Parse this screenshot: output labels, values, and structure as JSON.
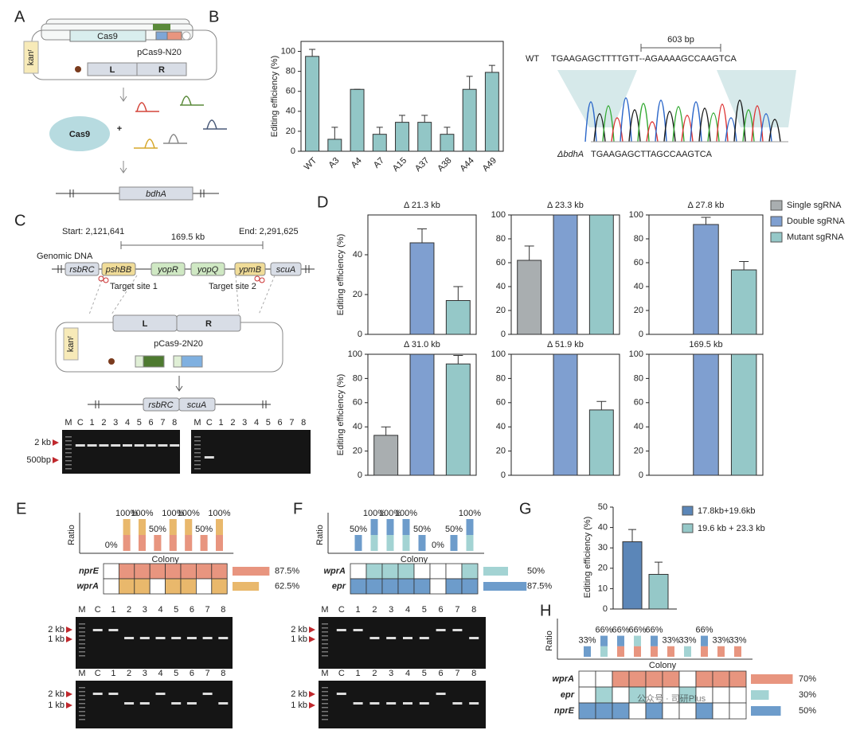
{
  "panel_labels": [
    "A",
    "B",
    "C",
    "D",
    "E",
    "F",
    "G",
    "H"
  ],
  "panel_a": {
    "cas9_gene": "Cas9",
    "kan": "kanʳ",
    "plasmid": "pCas9-N20",
    "left_arm": "L",
    "right_arm": "R",
    "cas9_protein": "Cas9",
    "plus": "+",
    "gene": "bdhA"
  },
  "panel_b_seq": {
    "wt_label": "WT",
    "wt_seq": "TGAAGAGCTTTTGTT--AGAAAAGCCAAGTCA",
    "deletion": "603 bp",
    "mut_label": "ΔbdhA",
    "mut_seq": "TGAAGAGCTTAGCCAAGTCA"
  },
  "panel_c": {
    "start": "Start: 2,121,641",
    "end": "End: 2,291,625",
    "span": "169.5 kb",
    "genomic": "Genomic DNA",
    "genes": [
      "rsbRC",
      "pshBB",
      "yopR",
      "yopQ",
      "ypmB",
      "scuA"
    ],
    "target1": "Target site 1",
    "target2": "Target site 2",
    "left_arm": "L",
    "right_arm": "R",
    "kan": "kanʳ",
    "plasmid": "pCas9-2N20",
    "product_genes": [
      "rsbRC",
      "scuA"
    ],
    "gel_lanes": [
      "M",
      "C",
      "1",
      "2",
      "3",
      "4",
      "5",
      "6",
      "7",
      "8"
    ],
    "markers": [
      "2 kb",
      "500bp"
    ]
  },
  "chart_data": [
    {
      "type": "bar",
      "ylabel": "Editing efficiency (%)",
      "color": "#92c6c6",
      "categories": [
        "WT",
        "A3",
        "A4",
        "A7",
        "A15",
        "A37",
        "A38",
        "A44",
        "A49"
      ],
      "values": [
        95,
        12,
        62,
        17,
        29,
        29,
        17,
        62,
        79
      ],
      "errors": [
        7,
        12,
        0,
        7,
        7,
        7,
        7,
        13,
        7
      ],
      "ylim": [
        0,
        110
      ],
      "yticks": [
        0,
        20,
        40,
        60,
        80,
        100
      ]
    },
    {
      "type": "bar-panels",
      "ylabel": "Editing efficiency (%)",
      "series": [
        {
          "name": "Single sgRNA",
          "color": "#a9aeb0"
        },
        {
          "name": "Double sgRNA",
          "color": "#7f9fd0"
        },
        {
          "name": "Mutant sgRNA",
          "color": "#95c8c8"
        }
      ],
      "panels": [
        {
          "title": "Δ 21.3 kb",
          "values": [
            null,
            46,
            17
          ],
          "errors": [
            null,
            7,
            7
          ],
          "ylim": [
            0,
            60
          ],
          "yticks": [
            0,
            20,
            40
          ]
        },
        {
          "title": "Δ 23.3 kb",
          "values": [
            62,
            100,
            100
          ],
          "errors": [
            12,
            null,
            null
          ],
          "ylim": [
            0,
            100
          ],
          "yticks": [
            0,
            20,
            40,
            60,
            80,
            100
          ]
        },
        {
          "title": "Δ 27.8 kb",
          "values": [
            null,
            92,
            54
          ],
          "errors": [
            null,
            6,
            7
          ],
          "ylim": [
            0,
            100
          ],
          "yticks": [
            0,
            20,
            40,
            60,
            80,
            100
          ]
        },
        {
          "title": "Δ 31.0 kb",
          "values": [
            33,
            100,
            92
          ],
          "errors": [
            7,
            null,
            7
          ],
          "ylim": [
            0,
            100
          ],
          "yticks": [
            0,
            20,
            40,
            60,
            80,
            100
          ]
        },
        {
          "title": "Δ 51.9 kb",
          "values": [
            null,
            100,
            54
          ],
          "errors": [
            null,
            null,
            7
          ],
          "ylim": [
            0,
            100
          ],
          "yticks": [
            0,
            20,
            40,
            60,
            80,
            100
          ]
        },
        {
          "title": "169.5 kb",
          "values": [
            null,
            100,
            100
          ],
          "errors": [
            null,
            null,
            null
          ],
          "ylim": [
            0,
            100
          ],
          "yticks": [
            0,
            20,
            40,
            60,
            80,
            100
          ]
        }
      ]
    },
    {
      "type": "bar-legend",
      "ylabel": "Editing efficiency (%)",
      "series": [
        {
          "name": "17.8kb+19.6kb",
          "color": "#5b86b8",
          "value": 33,
          "error": 6
        },
        {
          "name": "19.6 kb + 23.3 kb",
          "color": "#95c8c8",
          "value": 17,
          "error": 6
        }
      ],
      "ylim": [
        0,
        50
      ],
      "yticks": [
        0,
        10,
        20,
        30,
        40,
        50
      ]
    }
  ],
  "panel_e": {
    "ratio_label": "Ratio",
    "colony_label": "Colony",
    "ratios": [
      0,
      100,
      100,
      50,
      100,
      100,
      50,
      100
    ],
    "ratio_labels": [
      "0%",
      "100%",
      "100%",
      "50%",
      "100%",
      "100%",
      "50%",
      "100%"
    ],
    "rows": [
      {
        "name": "nprE",
        "color": "#e8957f",
        "cells": [
          0,
          1,
          1,
          1,
          1,
          1,
          1,
          1
        ],
        "percent": 87.5,
        "percent_label": "87.5%"
      },
      {
        "name": "wprA",
        "color": "#e9b86c",
        "cells": [
          0,
          1,
          1,
          0,
          1,
          1,
          0,
          1
        ],
        "percent": 62.5,
        "percent_label": "62.5%"
      }
    ],
    "gel_lanes": [
      "M",
      "C",
      "1",
      "2",
      "3",
      "4",
      "5",
      "6",
      "7",
      "8"
    ],
    "markers": [
      "2 kb",
      "1 kb"
    ]
  },
  "panel_f": {
    "ratio_label": "Ratio",
    "colony_label": "Colony",
    "ratios": [
      50,
      100,
      100,
      100,
      50,
      0,
      50,
      100
    ],
    "ratio_labels": [
      "50%",
      "100%",
      "100%",
      "100%",
      "50%",
      "0%",
      "50%",
      "100%"
    ],
    "rows": [
      {
        "name": "wprA",
        "color": "#a3d3d3",
        "cells": [
          0,
          1,
          1,
          1,
          0,
          0,
          0,
          1
        ],
        "percent": 50,
        "percent_label": "50%"
      },
      {
        "name": "epr",
        "color": "#6d9ccb",
        "cells": [
          1,
          1,
          1,
          1,
          1,
          0,
          1,
          1
        ],
        "percent": 87.5,
        "percent_label": "87.5%"
      }
    ],
    "gel_lanes": [
      "M",
      "C",
      "1",
      "2",
      "3",
      "4",
      "5",
      "6",
      "7",
      "8"
    ],
    "markers": [
      "2 kb",
      "1 kb"
    ]
  },
  "panel_h": {
    "ratio_label": "Ratio",
    "colony_label": "Colony",
    "ratios": [
      33,
      66,
      66,
      66,
      66,
      33,
      33,
      66,
      33,
      33
    ],
    "ratio_labels": [
      "33%",
      "66%",
      "66%",
      "66%",
      "66%",
      "33%",
      "33%",
      "66%",
      "33%",
      "33%"
    ],
    "rows": [
      {
        "name": "wprA",
        "color": "#e8957f",
        "cells": [
          0,
          0,
          1,
          1,
          1,
          1,
          0,
          1,
          1,
          1
        ],
        "percent": 70,
        "percent_label": "70%"
      },
      {
        "name": "epr",
        "color": "#a3d3d3",
        "cells": [
          0,
          1,
          0,
          1,
          0,
          0,
          1,
          0,
          0,
          0
        ],
        "percent": 30,
        "percent_label": "30%"
      },
      {
        "name": "nprE",
        "color": "#6d9ccb",
        "cells": [
          1,
          1,
          1,
          0,
          1,
          0,
          0,
          1,
          0,
          0
        ],
        "percent": 50,
        "percent_label": "50%"
      }
    ]
  },
  "watermark": "公众号 · 司研Plus"
}
